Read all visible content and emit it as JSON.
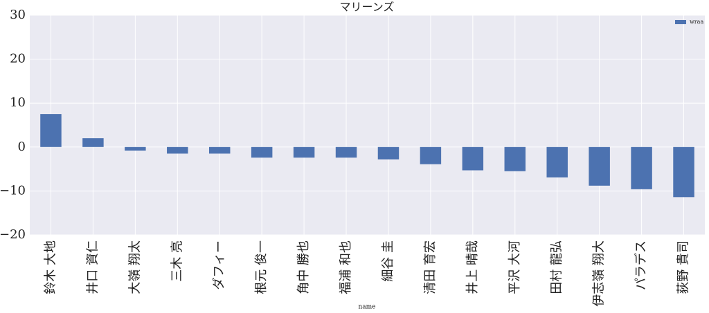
{
  "chart_data": {
    "type": "bar",
    "title": "マリーンズ",
    "x_label": "name",
    "categories": [
      "鈴木 大地",
      "井口 資仁",
      "大嶺 翔太",
      "三木 亮",
      "ダフィー",
      "根元 俊一",
      "角中 勝也",
      "福浦 和也",
      "細谷 圭",
      "清田 育宏",
      "井上 晴哉",
      "平沢 大河",
      "田村 龍弘",
      "伊志嶺 翔大",
      "パラデス",
      "荻野 貴司"
    ],
    "series": [
      {
        "name": "wraa",
        "color": "#4c72b0",
        "values": [
          7.5,
          2.0,
          -0.8,
          -1.5,
          -1.5,
          -2.4,
          -2.4,
          -2.4,
          -2.8,
          -3.9,
          -5.3,
          -5.5,
          -6.9,
          -8.8,
          -9.6,
          -11.4
        ]
      }
    ],
    "ylim": [
      -20,
      30
    ],
    "yticks": [
      {
        "value": -20,
        "label": "−20"
      },
      {
        "value": -10,
        "label": "−10"
      },
      0,
      10,
      20,
      30
    ],
    "grid": true,
    "legend": "upper right"
  }
}
